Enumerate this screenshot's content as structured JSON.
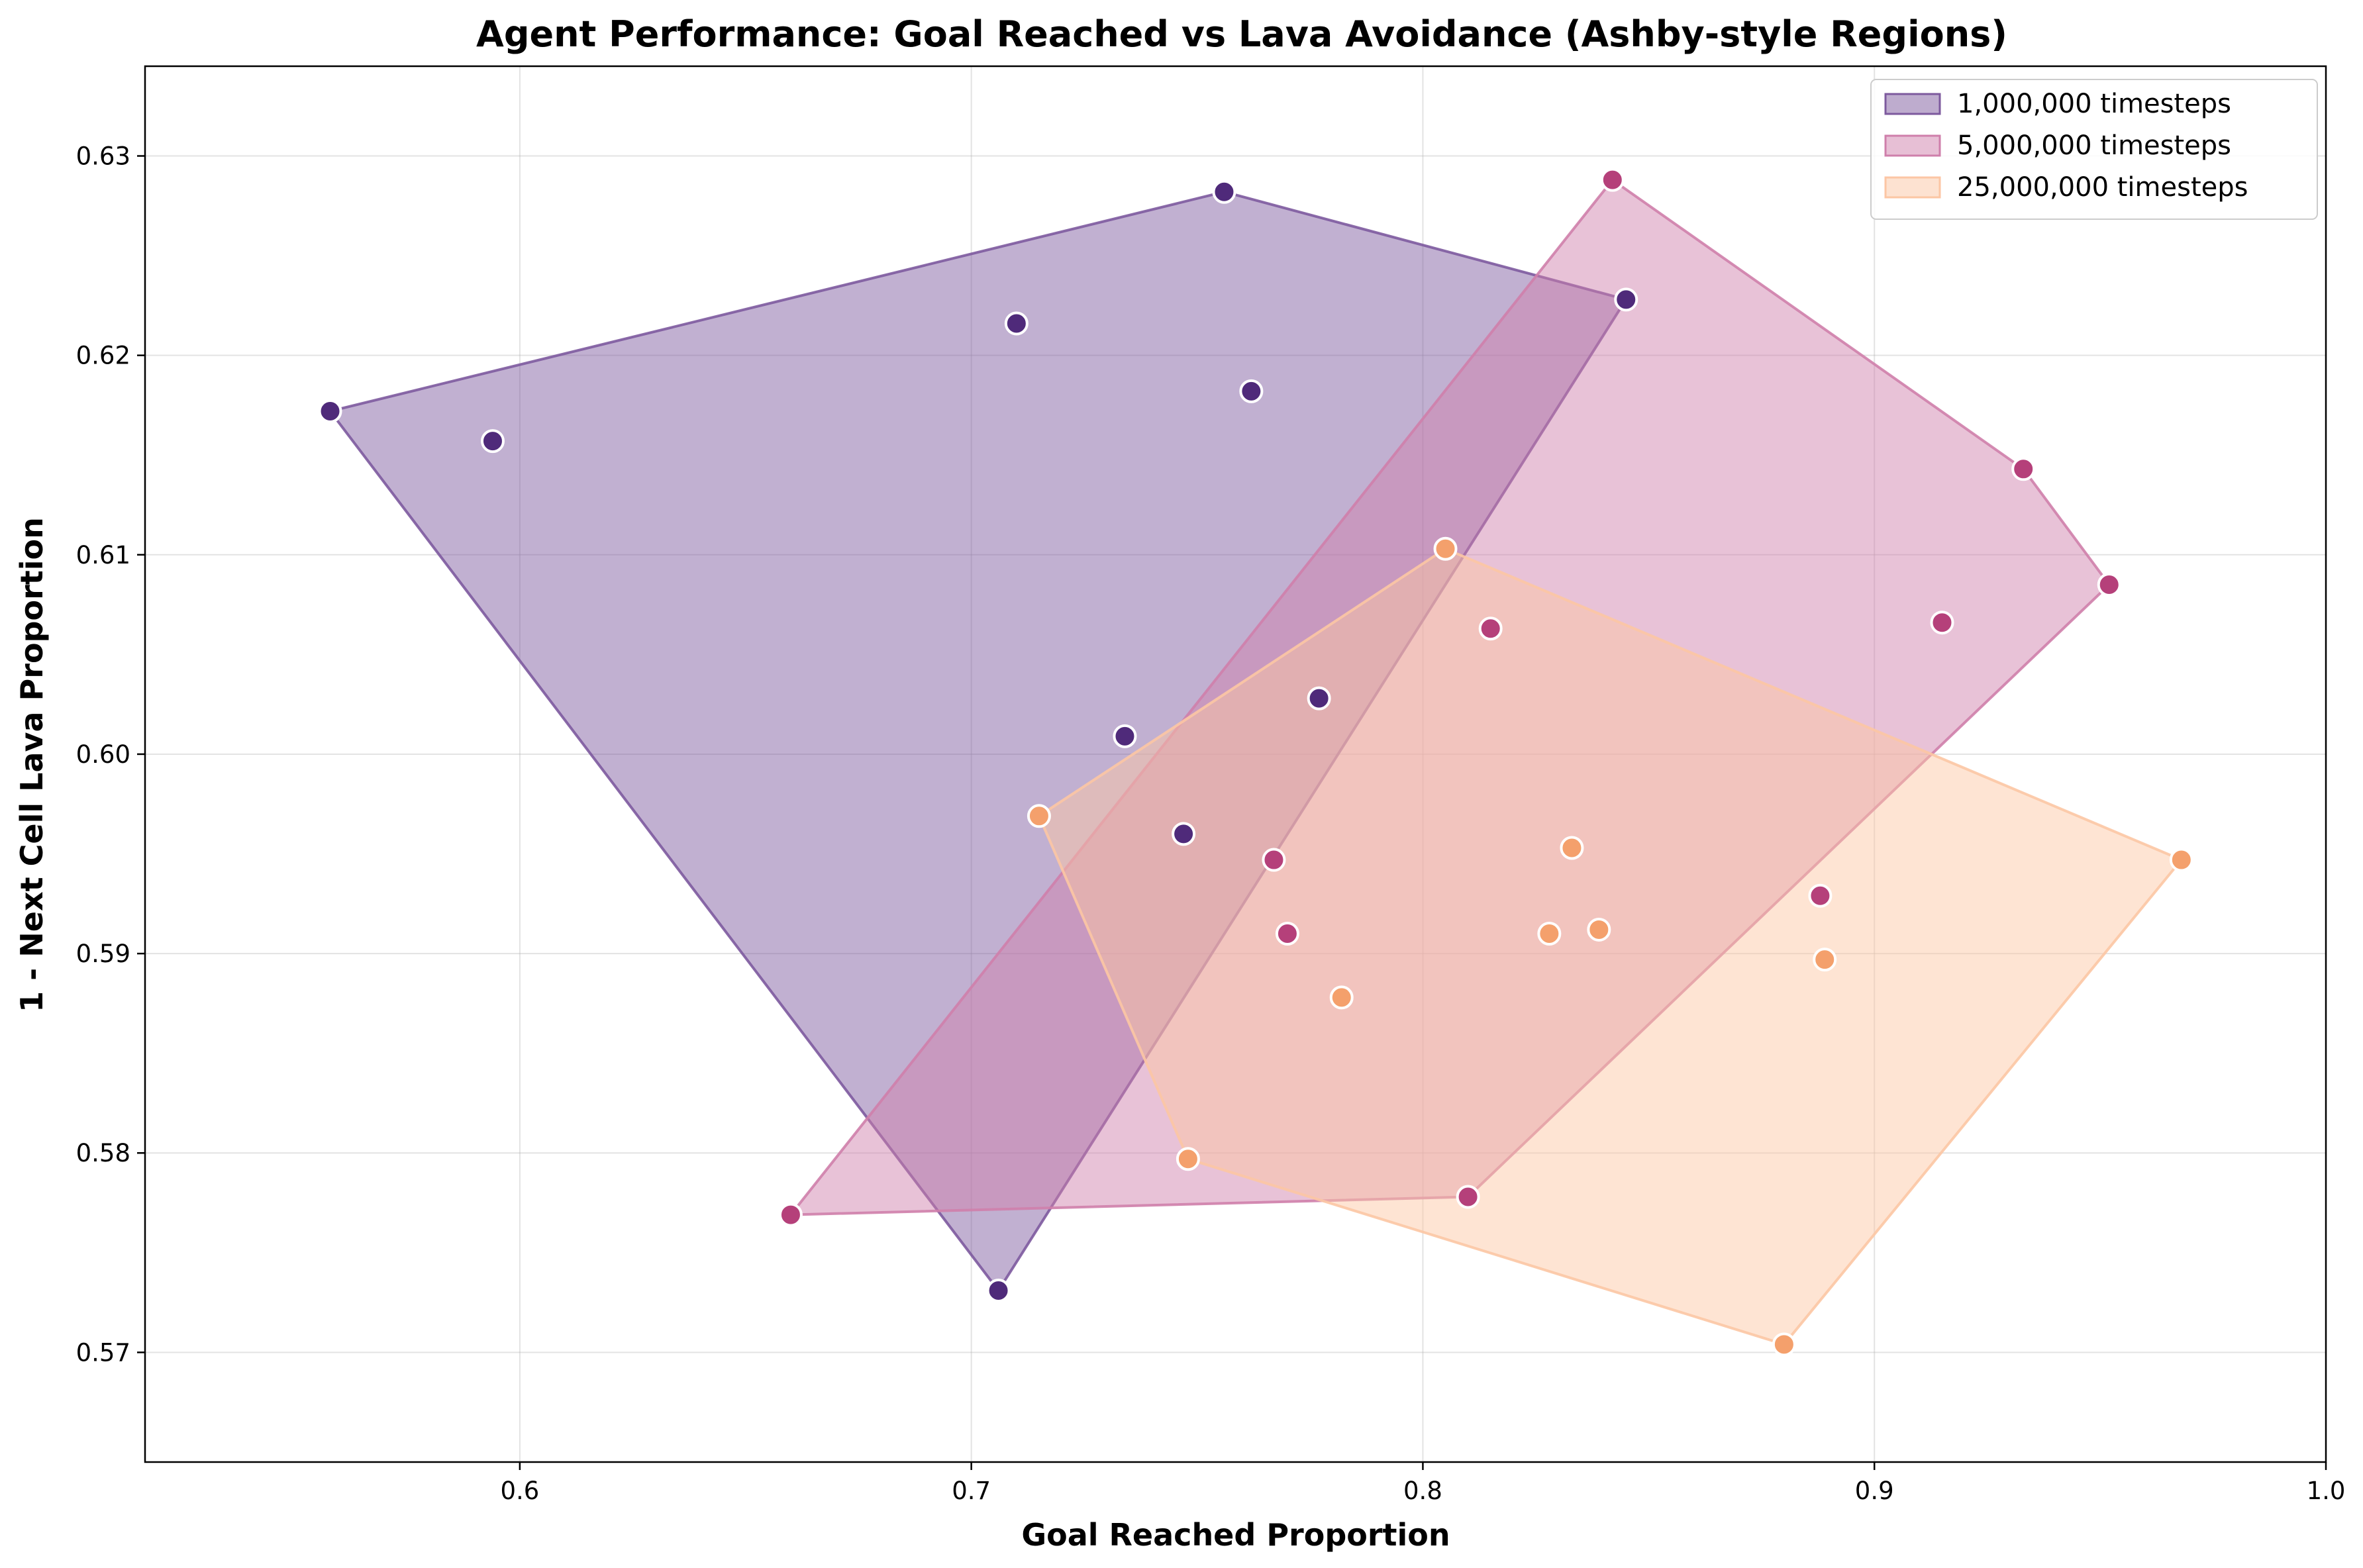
{
  "chart_data": {
    "type": "scatter",
    "title": "Agent Performance: Goal Reached vs Lava Avoidance (Ashby-style Regions)",
    "xlabel": "Goal Reached Proportion",
    "ylabel": "1 - Next Cell Lava Proportion",
    "xlim": [
      0.517,
      1.0
    ],
    "ylim": [
      0.5645,
      0.6345
    ],
    "xticks": [
      0.6,
      0.7,
      0.8,
      0.9,
      1.0
    ],
    "xtick_labels": [
      "0.6",
      "0.7",
      "0.8",
      "0.9",
      "1.0"
    ],
    "yticks": [
      0.57,
      0.58,
      0.59,
      0.6,
      0.61,
      0.62,
      0.63
    ],
    "ytick_labels": [
      "0.57",
      "0.58",
      "0.59",
      "0.60",
      "0.61",
      "0.62",
      "0.63"
    ],
    "grid": true,
    "legend_position": "top-right",
    "series": [
      {
        "name": "1,000,000 timesteps",
        "color": "#4f2a7a",
        "fill": "#7d5a9e",
        "points": [
          [
            0.558,
            0.6172
          ],
          [
            0.594,
            0.6157
          ],
          [
            0.71,
            0.6216
          ],
          [
            0.756,
            0.6282
          ],
          [
            0.762,
            0.6182
          ],
          [
            0.845,
            0.6228
          ],
          [
            0.777,
            0.6028
          ],
          [
            0.734,
            0.6009
          ],
          [
            0.747,
            0.596
          ],
          [
            0.706,
            0.5731
          ]
        ],
        "hull": [
          [
            0.558,
            0.6172
          ],
          [
            0.756,
            0.6282
          ],
          [
            0.845,
            0.6228
          ],
          [
            0.706,
            0.5731
          ]
        ]
      },
      {
        "name": "5,000,000 timesteps",
        "color": "#b5407a",
        "fill": "#cf7fab",
        "points": [
          [
            0.842,
            0.6288
          ],
          [
            0.933,
            0.6143
          ],
          [
            0.952,
            0.6085
          ],
          [
            0.915,
            0.6066
          ],
          [
            0.815,
            0.6063
          ],
          [
            0.767,
            0.5947
          ],
          [
            0.77,
            0.591
          ],
          [
            0.888,
            0.5929
          ],
          [
            0.81,
            0.5778
          ],
          [
            0.66,
            0.5769
          ]
        ],
        "hull": [
          [
            0.66,
            0.5769
          ],
          [
            0.842,
            0.6288
          ],
          [
            0.933,
            0.6143
          ],
          [
            0.952,
            0.6085
          ],
          [
            0.81,
            0.5778
          ]
        ]
      },
      {
        "name": "25,000,000 timesteps",
        "color": "#f4a06c",
        "fill": "#fcc6a4",
        "points": [
          [
            0.805,
            0.6103
          ],
          [
            0.715,
            0.5969
          ],
          [
            0.833,
            0.5953
          ],
          [
            0.828,
            0.591
          ],
          [
            0.839,
            0.5912
          ],
          [
            0.889,
            0.5897
          ],
          [
            0.782,
            0.5878
          ],
          [
            0.748,
            0.5797
          ],
          [
            0.968,
            0.5947
          ],
          [
            0.88,
            0.5704
          ]
        ],
        "hull": [
          [
            0.715,
            0.5969
          ],
          [
            0.805,
            0.6103
          ],
          [
            0.968,
            0.5947
          ],
          [
            0.88,
            0.5704
          ],
          [
            0.748,
            0.5797
          ]
        ]
      }
    ]
  }
}
